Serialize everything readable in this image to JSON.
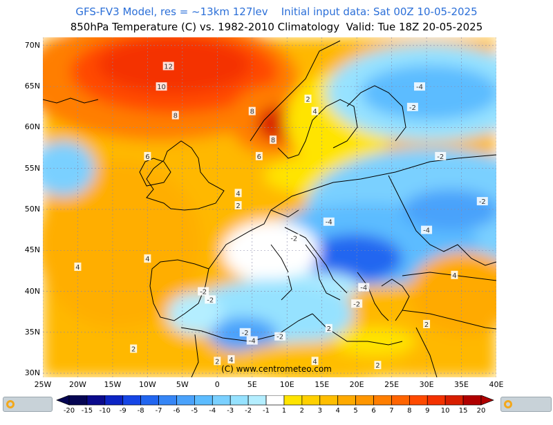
{
  "header": {
    "title": "GFS-FV3 Model, res = ~13km 127lev    Initial input data: Sat 00Z 10-05-2025",
    "subtitle": "850hPa Temperature (C) vs. 1982-2010 Climatology  Valid: Tue 18Z 20-05-2025"
  },
  "map": {
    "lat_labels": [
      "70N",
      "65N",
      "60N",
      "55N",
      "50N",
      "45N",
      "40N",
      "35N",
      "30N"
    ],
    "lon_labels": [
      "25W",
      "20W",
      "15W",
      "10W",
      "5W",
      "0",
      "5E",
      "10E",
      "15E",
      "20E",
      "25E",
      "30E",
      "35E",
      "40E"
    ],
    "copyright": "(C)  www.centrometeo.com",
    "contour_labels": [
      {
        "text": "12",
        "lon": -7,
        "lat": 67.5
      },
      {
        "text": "10",
        "lon": -8,
        "lat": 65
      },
      {
        "text": "8",
        "lon": -6,
        "lat": 61.5
      },
      {
        "text": "6",
        "lon": -10,
        "lat": 56.5
      },
      {
        "text": "8",
        "lon": 5,
        "lat": 62
      },
      {
        "text": "8",
        "lon": 8,
        "lat": 58.5
      },
      {
        "text": "6",
        "lon": 6,
        "lat": 56.5
      },
      {
        "text": "2",
        "lon": 13,
        "lat": 63.5
      },
      {
        "text": "4",
        "lon": 14,
        "lat": 62
      },
      {
        "text": "4",
        "lon": 3,
        "lat": 52
      },
      {
        "text": "2",
        "lon": 3,
        "lat": 50.5
      },
      {
        "text": "-4",
        "lon": 29,
        "lat": 65
      },
      {
        "text": "-2",
        "lon": 28,
        "lat": 62.5
      },
      {
        "text": "-2",
        "lon": 32,
        "lat": 56.5
      },
      {
        "text": "-4",
        "lon": 16,
        "lat": 48.5
      },
      {
        "text": "-4",
        "lon": 30,
        "lat": 47.5
      },
      {
        "text": "-2",
        "lon": 11,
        "lat": 46.5
      },
      {
        "text": "-4",
        "lon": 21,
        "lat": 40.5
      },
      {
        "text": "-2",
        "lon": 20,
        "lat": 38.5
      },
      {
        "text": "-2",
        "lon": -2,
        "lat": 40
      },
      {
        "text": "-2",
        "lon": -1,
        "lat": 39
      },
      {
        "text": "-2",
        "lon": 4,
        "lat": 35
      },
      {
        "text": "-4",
        "lon": 5,
        "lat": 34
      },
      {
        "text": "-2",
        "lon": 9,
        "lat": 34.5
      },
      {
        "text": "2",
        "lon": 16,
        "lat": 35.5
      },
      {
        "text": "4",
        "lon": -10,
        "lat": 44
      },
      {
        "text": "4",
        "lon": -20,
        "lat": 43
      },
      {
        "text": "2",
        "lon": -12,
        "lat": 33
      },
      {
        "text": "2",
        "lon": 0,
        "lat": 31.5
      },
      {
        "text": "4",
        "lon": 2,
        "lat": 31.7
      },
      {
        "text": "4",
        "lon": 14,
        "lat": 31.5
      },
      {
        "text": "2",
        "lon": 23,
        "lat": 31
      },
      {
        "text": "2",
        "lon": 30,
        "lat": 36
      },
      {
        "text": "4",
        "lon": 34,
        "lat": 42
      },
      {
        "text": "-2",
        "lon": 38,
        "lat": 51
      }
    ]
  },
  "colorbar": {
    "ticks": [
      "-20",
      "-15",
      "-10",
      "-9",
      "-8",
      "-7",
      "-6",
      "-5",
      "-4",
      "-3",
      "-2",
      "-1",
      "1",
      "2",
      "3",
      "4",
      "5",
      "6",
      "7",
      "8",
      "9",
      "10",
      "15",
      "20"
    ],
    "colors": [
      "#050553",
      "#0a0a8c",
      "#0c24c4",
      "#1646e6",
      "#2266f0",
      "#3686f6",
      "#4aa2fb",
      "#5cbcff",
      "#7ad0ff",
      "#96e2ff",
      "#b4eeff",
      "#ffffff",
      "#ffe400",
      "#ffd000",
      "#ffbe00",
      "#ffaa00",
      "#ff9600",
      "#ff7e00",
      "#ff6400",
      "#ff4a00",
      "#f43200",
      "#d81e00",
      "#b00000"
    ],
    "logo_text": "centrometeo"
  }
}
